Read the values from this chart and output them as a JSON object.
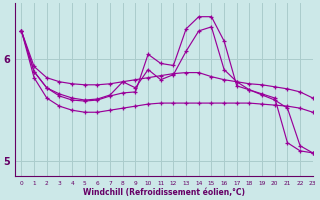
{
  "xlabel": "Windchill (Refroidissement éolien,°C)",
  "xlim": [
    -0.5,
    23
  ],
  "ylim": [
    4.85,
    6.55
  ],
  "yticks": [
    5,
    6
  ],
  "xticks": [
    0,
    1,
    2,
    3,
    4,
    5,
    6,
    7,
    8,
    9,
    10,
    11,
    12,
    13,
    14,
    15,
    16,
    17,
    18,
    19,
    20,
    21,
    22,
    23
  ],
  "bg_color": "#cce8e8",
  "line_color": "#990099",
  "grid_color": "#aacccc",
  "line1_x": [
    0,
    1,
    2,
    3,
    4,
    5,
    6,
    7,
    8,
    9,
    10,
    11,
    12,
    13,
    14,
    15,
    16,
    17,
    18,
    19,
    20,
    21,
    22,
    23
  ],
  "line1_y": [
    6.28,
    5.93,
    5.82,
    5.78,
    5.76,
    5.75,
    5.75,
    5.76,
    5.78,
    5.8,
    5.82,
    5.84,
    5.86,
    5.87,
    5.87,
    5.83,
    5.8,
    5.78,
    5.76,
    5.75,
    5.73,
    5.71,
    5.68,
    5.62
  ],
  "line2_x": [
    0,
    1,
    2,
    3,
    4,
    5,
    6,
    7,
    8,
    9,
    10,
    11,
    12,
    13,
    14,
    15,
    16,
    17,
    18,
    19,
    20,
    21,
    22,
    23
  ],
  "line2_y": [
    6.28,
    5.88,
    5.72,
    5.66,
    5.62,
    5.6,
    5.61,
    5.65,
    5.78,
    5.72,
    5.9,
    5.8,
    5.85,
    6.08,
    6.28,
    6.32,
    5.9,
    5.78,
    5.7,
    5.65,
    5.6,
    5.52,
    5.15,
    5.08
  ],
  "line3_x": [
    0,
    1,
    2,
    3,
    4,
    5,
    6,
    7,
    8,
    9,
    10,
    11,
    12,
    13,
    14,
    15,
    16,
    17,
    18,
    19,
    20,
    21,
    22,
    23
  ],
  "line3_y": [
    6.28,
    5.88,
    5.72,
    5.64,
    5.6,
    5.59,
    5.6,
    5.64,
    5.67,
    5.68,
    6.05,
    5.96,
    5.94,
    6.3,
    6.42,
    6.42,
    6.18,
    5.74,
    5.7,
    5.66,
    5.62,
    5.18,
    5.1,
    5.08
  ],
  "line4_x": [
    0,
    1,
    2,
    3,
    4,
    5,
    6,
    7,
    8,
    9,
    10,
    11,
    12,
    13,
    14,
    15,
    16,
    17,
    18,
    19,
    20,
    21,
    22,
    23
  ],
  "line4_y": [
    6.28,
    5.82,
    5.62,
    5.54,
    5.5,
    5.48,
    5.48,
    5.5,
    5.52,
    5.54,
    5.56,
    5.57,
    5.57,
    5.57,
    5.57,
    5.57,
    5.57,
    5.57,
    5.57,
    5.56,
    5.55,
    5.54,
    5.52,
    5.48
  ]
}
